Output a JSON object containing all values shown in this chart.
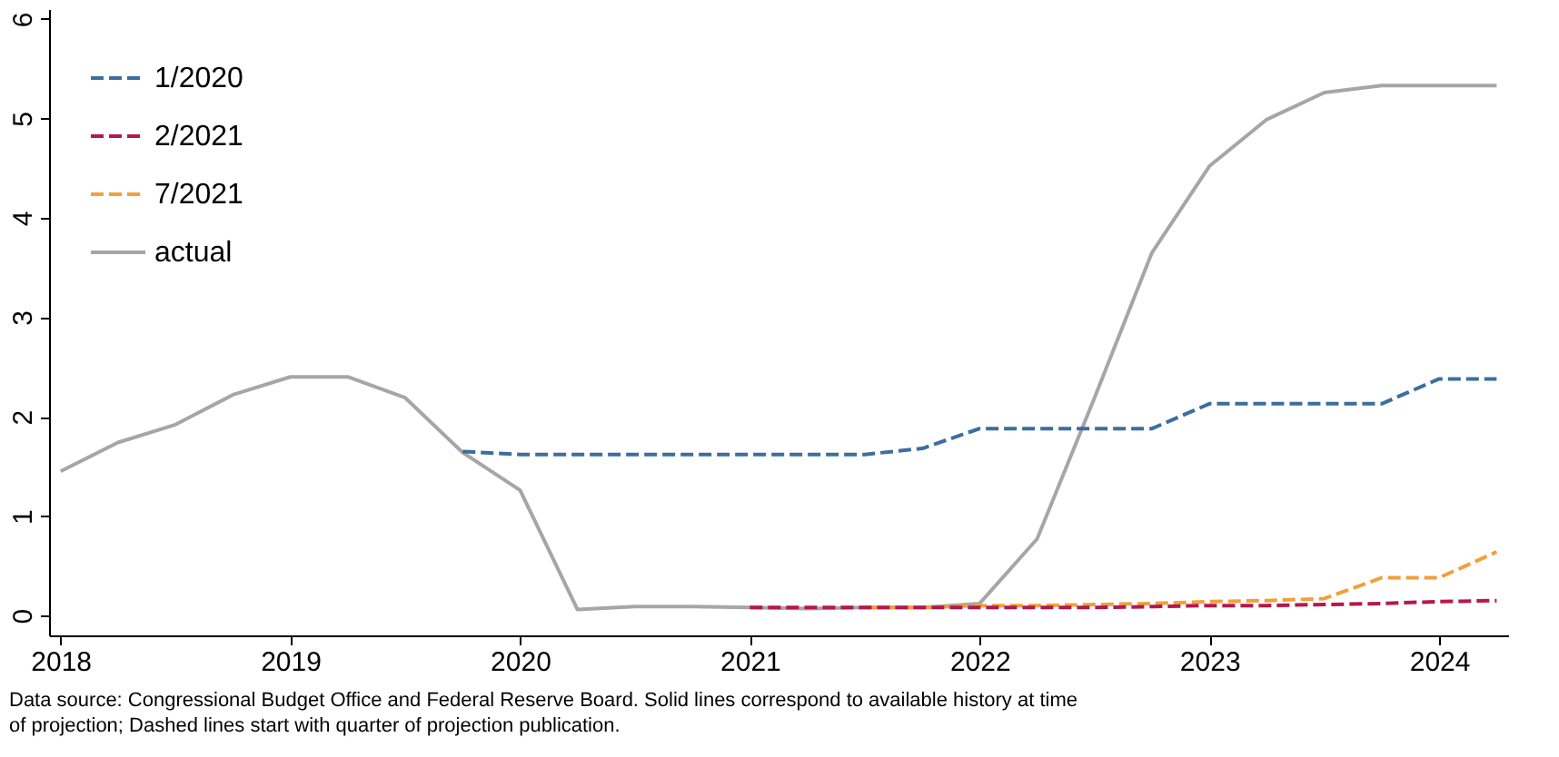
{
  "chart_data": {
    "type": "line",
    "xlim": [
      2017.95,
      2024.3
    ],
    "xticks": [
      2018,
      2019,
      2020,
      2021,
      2022,
      2023,
      2024
    ],
    "ylim": [
      -0.2,
      6.1
    ],
    "yticks": [
      0,
      1,
      2,
      3,
      4,
      5,
      6
    ],
    "legend": "top left",
    "grid": false,
    "marker": "none",
    "annotations": [
      "Data source: Congressional Budget Office and Federal Reserve Board. Solid lines correspond to available history at time of projection; Dashed lines start with quarter of projection publication."
    ],
    "series": [
      {
        "name": "1/2020",
        "color": "#3b6e9e",
        "line_style": "dashed",
        "x": [
          2019.75,
          2020,
          2020.25,
          2020.5,
          2020.75,
          2021,
          2021.25,
          2021.5,
          2021.75,
          2022,
          2022.25,
          2022.5,
          2022.75,
          2023,
          2023.25,
          2023.5,
          2023.75,
          2024,
          2024.25
        ],
        "values": [
          1.65,
          1.62,
          1.62,
          1.62,
          1.62,
          1.62,
          1.62,
          1.62,
          1.68,
          1.88,
          1.88,
          1.88,
          1.88,
          2.13,
          2.13,
          2.13,
          2.13,
          2.38,
          2.38
        ]
      },
      {
        "name": "2/2021",
        "color": "#b5174e",
        "line_style": "dashed",
        "x": [
          2021,
          2021.25,
          2021.5,
          2021.75,
          2022,
          2022.25,
          2022.5,
          2022.75,
          2023,
          2023.25,
          2023.5,
          2023.75,
          2024,
          2024.25
        ],
        "values": [
          0.08,
          0.08,
          0.08,
          0.08,
          0.08,
          0.08,
          0.08,
          0.09,
          0.1,
          0.1,
          0.11,
          0.12,
          0.14,
          0.15
        ]
      },
      {
        "name": "7/2021",
        "color": "#f0a03c",
        "line_style": "dashed",
        "x": [
          2021.5,
          2021.75,
          2022,
          2022.25,
          2022.5,
          2022.75,
          2023,
          2023.25,
          2023.5,
          2023.75,
          2024,
          2024.25
        ],
        "values": [
          0.08,
          0.08,
          0.1,
          0.1,
          0.11,
          0.12,
          0.14,
          0.15,
          0.17,
          0.38,
          0.38,
          0.64
        ]
      },
      {
        "name": "actual",
        "color": "#a6a6a6",
        "line_style": "solid",
        "x": [
          2018,
          2018.25,
          2018.5,
          2018.75,
          2019,
          2019.25,
          2019.5,
          2019.75,
          2020,
          2020.25,
          2020.5,
          2020.75,
          2021,
          2021.25,
          2021.5,
          2021.75,
          2022,
          2022.25,
          2022.5,
          2022.75,
          2023,
          2023.25,
          2023.5,
          2023.75,
          2024,
          2024.25
        ],
        "values": [
          1.45,
          1.74,
          1.92,
          2.22,
          2.4,
          2.4,
          2.19,
          1.64,
          1.26,
          0.06,
          0.09,
          0.09,
          0.08,
          0.07,
          0.08,
          0.08,
          0.12,
          0.77,
          2.19,
          3.65,
          4.52,
          4.99,
          5.26,
          5.33,
          5.33,
          5.33
        ]
      }
    ]
  }
}
